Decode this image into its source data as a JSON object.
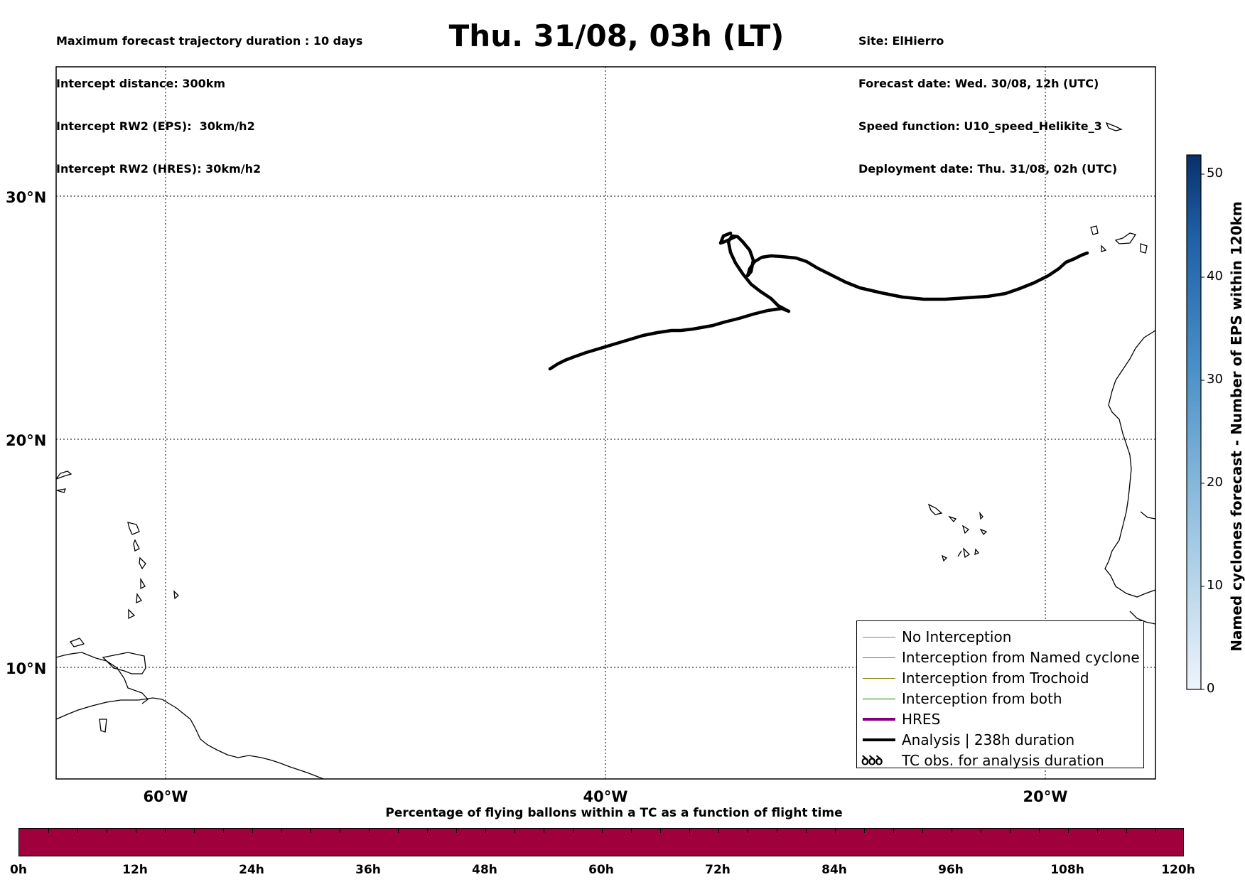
{
  "header": {
    "left_lines": [
      "Maximum forecast trajectory duration : 10 days",
      "Intercept distance: 300km",
      "Intercept RW2 (EPS):  30km/h2",
      "Intercept RW2 (HRES): 30km/h2"
    ],
    "title": "Thu. 31/08, 03h (LT)",
    "right_lines": [
      "Site: ElHierro",
      "Forecast date: Wed. 30/08, 12h (UTC)",
      "Speed function: U10_speed_Helikite_3",
      "Deployment date: Thu. 31/08, 02h (UTC)"
    ]
  },
  "map": {
    "lat_labels": [
      "30°N",
      "20°N",
      "10°N"
    ],
    "lon_labels": [
      "60°W",
      "40°W",
      "20°W"
    ],
    "grid": "dotted",
    "analysis_track_color": "#000000"
  },
  "legend": {
    "items": [
      {
        "label": "No Interception",
        "color": "#808080"
      },
      {
        "label": "Interception from Named cyclone",
        "color": "#ff4500"
      },
      {
        "label": "Interception from Trochoid",
        "color": "#808000"
      },
      {
        "label": "Interception from both",
        "color": "#008000"
      },
      {
        "label": "HRES",
        "color": "#800080"
      },
      {
        "label": "Analysis | 238h duration",
        "color": "#000000"
      },
      {
        "label": "TC obs. for analysis duration",
        "symbol": "ꝺꝺꝺ"
      }
    ]
  },
  "right_colorbar": {
    "label": "Named cyclones forecast - Number of EPS within 120km",
    "ticks": [
      "0",
      "10",
      "20",
      "30",
      "40",
      "50"
    ],
    "color_low": "#e8f0fa",
    "color_high": "#08306b"
  },
  "bottom_colorbar": {
    "title": "Percentage of flying ballons within a TC as a function of flight time",
    "ticks": [
      "0h",
      "12h",
      "24h",
      "36h",
      "48h",
      "60h",
      "72h",
      "84h",
      "96h",
      "108h",
      "120h"
    ],
    "color": "#a0003c"
  }
}
